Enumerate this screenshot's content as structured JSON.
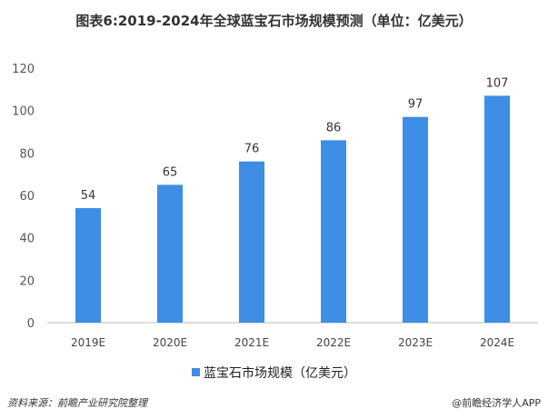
{
  "chart_data": {
    "type": "bar",
    "title": "图表6:2019-2024年全球蓝宝石市场规模预测（单位：亿美元）",
    "categories": [
      "2019E",
      "2020E",
      "2021E",
      "2022E",
      "2023E",
      "2024E"
    ],
    "series": [
      {
        "name": "蓝宝石市场规模（亿美元）",
        "values": [
          54,
          65,
          76,
          86,
          97,
          107
        ]
      }
    ],
    "yticks": [
      "0",
      "20",
      "40",
      "60",
      "80",
      "100",
      "120"
    ],
    "ylim": [
      0,
      120
    ],
    "grid": false,
    "legend": "bottom",
    "bar_color": "#3d8ee4"
  },
  "footer": {
    "source": "资料来源：前瞻产业研究院整理",
    "credit": "@前瞻经济学人APP"
  }
}
